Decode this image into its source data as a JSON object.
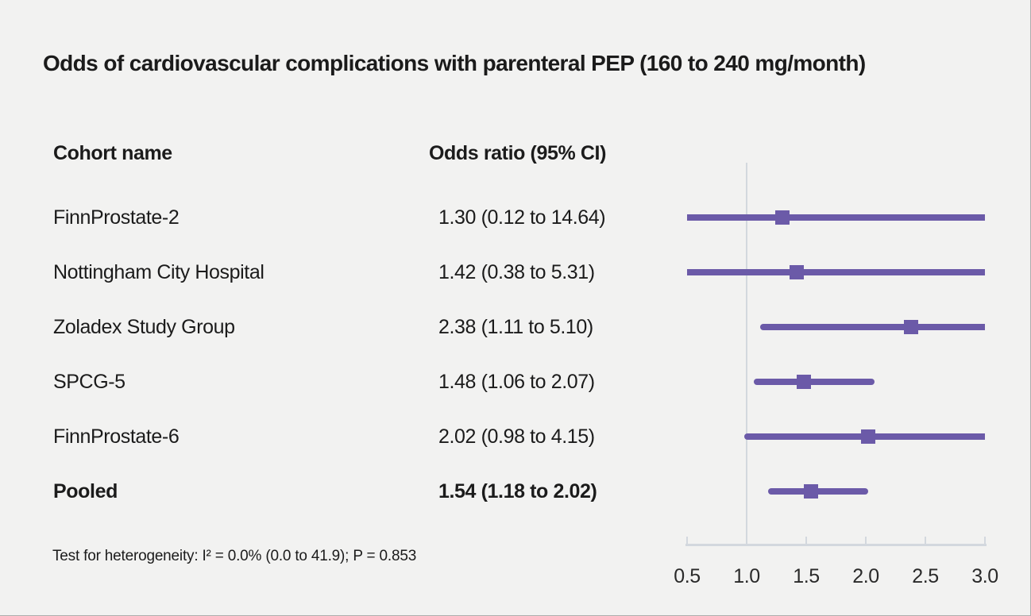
{
  "chart_data": {
    "type": "forest",
    "title": "Odds of cardiovascular complications with parenteral PEP (160 to 240 mg/month)",
    "columns": {
      "cohort": "Cohort name",
      "odds_ratio": "Odds ratio (95% CI)"
    },
    "rows": [
      {
        "cohort": "FinnProstate-2",
        "or_label": "1.30 (0.12 to 14.64)",
        "or": 1.3,
        "ci_low": 0.12,
        "ci_high": 14.64,
        "bold": false
      },
      {
        "cohort": "Nottingham City Hospital",
        "or_label": "1.42 (0.38 to 5.31)",
        "or": 1.42,
        "ci_low": 0.38,
        "ci_high": 5.31,
        "bold": false
      },
      {
        "cohort": "Zoladex Study Group",
        "or_label": "2.38 (1.11 to 5.10)",
        "or": 2.38,
        "ci_low": 1.11,
        "ci_high": 5.1,
        "bold": false
      },
      {
        "cohort": "SPCG-5",
        "or_label": "1.48 (1.06 to 2.07)",
        "or": 1.48,
        "ci_low": 1.06,
        "ci_high": 2.07,
        "bold": false
      },
      {
        "cohort": "FinnProstate-6",
        "or_label": "2.02 (0.98 to 4.15)",
        "or": 2.02,
        "ci_low": 0.98,
        "ci_high": 4.15,
        "bold": false
      },
      {
        "cohort": "Pooled",
        "or_label": "1.54 (1.18 to 2.02)",
        "or": 1.54,
        "ci_low": 1.18,
        "ci_high": 2.02,
        "bold": true
      }
    ],
    "x_axis": {
      "scale": "linear",
      "range": [
        0.5,
        3.0
      ],
      "ticks": [
        0.5,
        1.0,
        1.5,
        2.0,
        2.5,
        3.0
      ],
      "tick_labels": [
        "0.5",
        "1.0",
        "1.5",
        "2.0",
        "2.5",
        "3.0"
      ],
      "reference_line": 1.0
    },
    "footnote": "Test for heterogeneity: I² = 0.0% (0.0 to 41.9); P = 0.853",
    "legend_position": "none",
    "grid": false,
    "colors": {
      "marker": "#6b5aa8",
      "ci_line": "#6b5aa8",
      "reference_line": "#d3d8de",
      "axis": "#d3d8de",
      "background": "#f2f2f1",
      "text": "#1b1b1b"
    }
  }
}
